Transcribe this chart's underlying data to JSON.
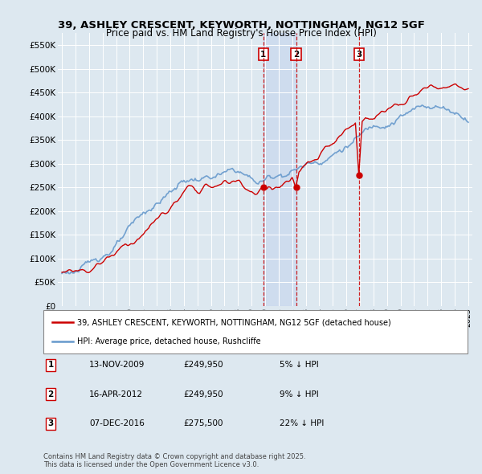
{
  "title": "39, ASHLEY CRESCENT, KEYWORTH, NOTTINGHAM, NG12 5GF",
  "subtitle": "Price paid vs. HM Land Registry's House Price Index (HPI)",
  "ylim": [
    0,
    575000
  ],
  "yticks": [
    0,
    50000,
    100000,
    150000,
    200000,
    250000,
    300000,
    350000,
    400000,
    450000,
    500000,
    550000
  ],
  "ytick_labels": [
    "£0",
    "£50K",
    "£100K",
    "£150K",
    "£200K",
    "£250K",
    "£300K",
    "£350K",
    "£400K",
    "£450K",
    "£500K",
    "£550K"
  ],
  "background_color": "#dde8f0",
  "plot_bg_color": "#dde8f0",
  "grid_color": "#ffffff",
  "transactions": [
    {
      "date": "13-NOV-2009",
      "price": 249950,
      "label": "1",
      "x_year": 2009.87,
      "pct": "5% ↓ HPI"
    },
    {
      "date": "16-APR-2012",
      "price": 249950,
      "label": "2",
      "x_year": 2012.29,
      "pct": "9% ↓ HPI"
    },
    {
      "date": "07-DEC-2016",
      "price": 275500,
      "label": "3",
      "x_year": 2016.93,
      "pct": "22% ↓ HPI"
    }
  ],
  "legend_property": "39, ASHLEY CRESCENT, KEYWORTH, NOTTINGHAM, NG12 5GF (detached house)",
  "legend_hpi": "HPI: Average price, detached house, Rushcliffe",
  "footer": "Contains HM Land Registry data © Crown copyright and database right 2025.\nThis data is licensed under the Open Government Licence v3.0.",
  "property_line_color": "#cc0000",
  "hpi_line_color": "#6699cc",
  "marker_box_color": "#cc0000",
  "dashed_line_color": "#cc0000",
  "shade_color": "#c8d8ee",
  "xlim_left": 1994.7,
  "xlim_right": 2025.3
}
